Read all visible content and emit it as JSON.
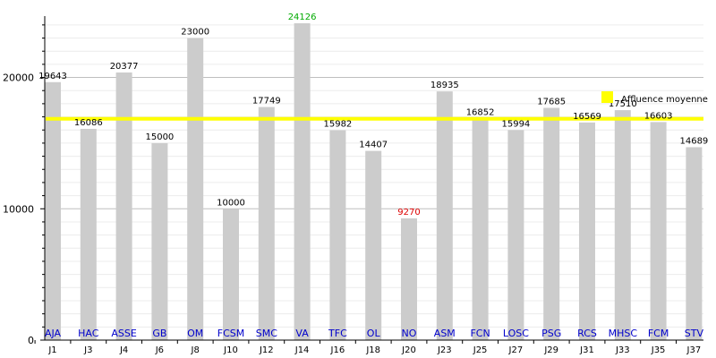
{
  "chart_data": {
    "type": "bar",
    "title": "",
    "xlabel": "",
    "ylabel": "",
    "ylim": [
      0,
      24126
    ],
    "y_ticks": [
      0,
      10000,
      20000
    ],
    "minor_grid_step": 1000,
    "grid": true,
    "bar_color": "#cccccc",
    "value_label_color": "#000000",
    "max_label_color": "#00aa00",
    "min_label_color": "#dd0000",
    "team_label_color": "#0000cc",
    "average": {
      "label": "Affluence moyenne",
      "value": 16850,
      "color": "#ffff00"
    },
    "legend_position": "top-right",
    "categories": [
      "J1",
      "J3",
      "J4",
      "J6",
      "J8",
      "J10",
      "J12",
      "J14",
      "J16",
      "J18",
      "J20",
      "J23",
      "J25",
      "J27",
      "J29",
      "J31",
      "J33",
      "J35",
      "J37"
    ],
    "teams": [
      "AJA",
      "HAC",
      "ASSE",
      "GB",
      "OM",
      "FCSM",
      "SMC",
      "VA",
      "TFC",
      "OL",
      "NO",
      "ASM",
      "FCN",
      "LOSC",
      "PSG",
      "RCS",
      "MHSC",
      "FCM",
      "STV"
    ],
    "values": [
      19643,
      16086,
      20377,
      15000,
      23000,
      10000,
      17749,
      24126,
      15982,
      14407,
      9270,
      18935,
      16852,
      15994,
      17685,
      16569,
      17510,
      16603,
      14689
    ],
    "value_labels": [
      "19643",
      "16086",
      "20377",
      "15000",
      "23000",
      "10000",
      "17749",
      "24126",
      "15982",
      "14407",
      "9270",
      "18935",
      "16852",
      "15994",
      "17685",
      "16569",
      "17510",
      "16603",
      "14689"
    ],
    "y_tick_labels": [
      "0",
      "10000",
      "20000"
    ]
  }
}
